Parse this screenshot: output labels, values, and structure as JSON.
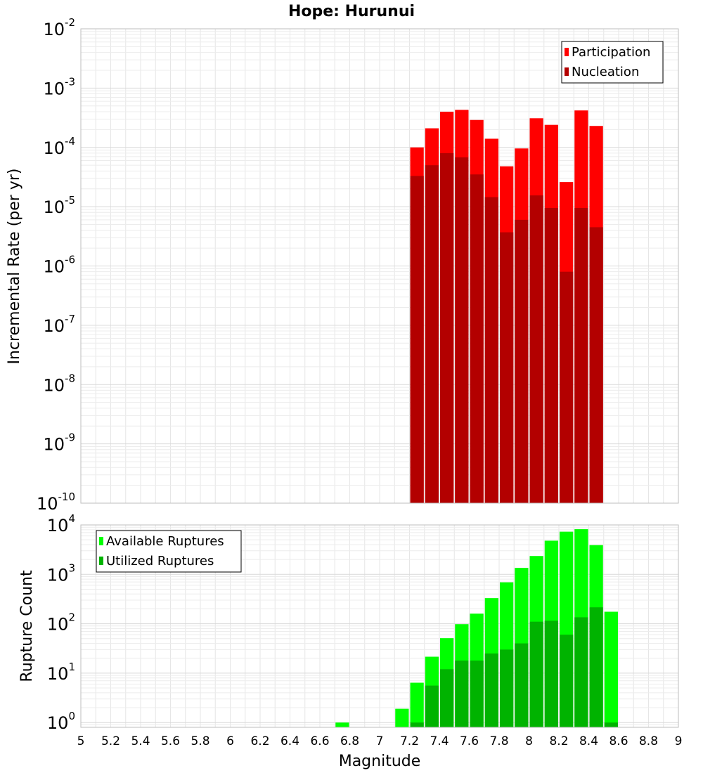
{
  "chart_data": [
    {
      "type": "bar",
      "panel": "top",
      "title": "Hope: Hurunui",
      "xlabel": "",
      "ylabel": "Incremental Rate (per yr)",
      "xlim": [
        5,
        9
      ],
      "yscale": "log",
      "ylim": [
        1e-10,
        0.01
      ],
      "ytick_exponents": [
        "-2",
        "-3",
        "-4",
        "-5",
        "-6",
        "-7",
        "-8",
        "-9",
        "-10"
      ],
      "ytick_base": "10",
      "bar_width": 0.1,
      "grid": true,
      "legend_position": "top-right",
      "series": [
        {
          "name": "Participation",
          "color": "#ff0000",
          "x": [
            7.25,
            7.35,
            7.45,
            7.55,
            7.65,
            7.75,
            7.85,
            7.95,
            8.05,
            8.15,
            8.25,
            8.35,
            8.45
          ],
          "values": [
            0.0001,
            0.00021,
            0.0004,
            0.00043,
            0.00029,
            0.00014,
            4.8e-05,
            9.6e-05,
            0.00031,
            0.00024,
            2.6e-05,
            0.00042,
            0.00023
          ]
        },
        {
          "name": "Nucleation",
          "color": "#b30000",
          "x": [
            7.25,
            7.35,
            7.45,
            7.55,
            7.65,
            7.75,
            7.85,
            7.95,
            8.05,
            8.15,
            8.25,
            8.35,
            8.45
          ],
          "values": [
            3.3e-05,
            5e-05,
            8e-05,
            6.8e-05,
            3.5e-05,
            1.45e-05,
            3.7e-06,
            6e-06,
            1.55e-05,
            9.5e-06,
            8e-07,
            9.5e-06,
            4.5e-06
          ]
        }
      ]
    },
    {
      "type": "bar",
      "panel": "bottom",
      "title": "",
      "xlabel": "Magnitude",
      "ylabel": "Rupture Count",
      "xlim": [
        5,
        9
      ],
      "xticks": [
        "5",
        "5.2",
        "5.4",
        "5.6",
        "5.8",
        "6",
        "6.2",
        "6.4",
        "6.6",
        "6.8",
        "7",
        "7.2",
        "7.4",
        "7.6",
        "7.8",
        "8",
        "8.2",
        "8.4",
        "8.6",
        "8.8",
        "9"
      ],
      "yscale": "log",
      "ylim": [
        0.8,
        10000
      ],
      "ytick_exponents": [
        "4",
        "3",
        "2",
        "1",
        "0"
      ],
      "ytick_base": "10",
      "bar_width": 0.1,
      "grid": true,
      "legend_position": "top-left",
      "series": [
        {
          "name": "Available Ruptures",
          "color": "#00ff00",
          "x": [
            6.75,
            7.15,
            7.25,
            7.35,
            7.45,
            7.55,
            7.65,
            7.75,
            7.85,
            7.95,
            8.05,
            8.15,
            8.25,
            8.35,
            8.45,
            8.55
          ],
          "values": [
            1,
            1.9,
            6.4,
            21.5,
            51,
            98,
            160,
            330,
            690,
            1350,
            2350,
            4800,
            7300,
            8200,
            3900,
            175
          ]
        },
        {
          "name": "Utilized Ruptures",
          "color": "#00b300",
          "x": [
            7.25,
            7.35,
            7.45,
            7.55,
            7.65,
            7.75,
            7.85,
            7.95,
            8.05,
            8.15,
            8.25,
            8.35,
            8.45,
            8.55
          ],
          "values": [
            1,
            5.6,
            12,
            18,
            18,
            25,
            30,
            40,
            110,
            115,
            60,
            135,
            215,
            1
          ]
        }
      ]
    }
  ]
}
